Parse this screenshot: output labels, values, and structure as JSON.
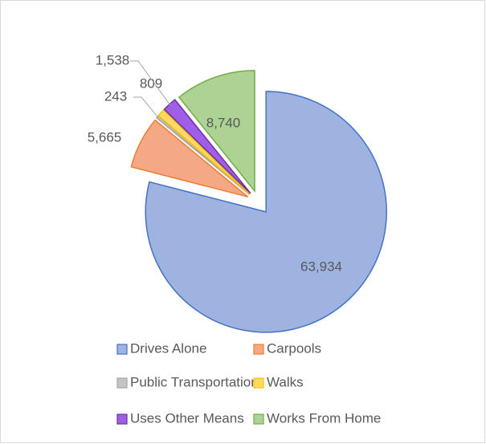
{
  "chart_data": {
    "type": "pie",
    "categories": [
      "Drives Alone",
      "Carpools",
      "Public Transportation",
      "Walks",
      "Uses Other Means",
      "Works From Home"
    ],
    "values": [
      63934,
      5665,
      243,
      809,
      1538,
      8740
    ],
    "value_labels": [
      "63,934",
      "5,665",
      "243",
      "809",
      "1,538",
      "8,740"
    ],
    "colors": [
      "#9fb3e1",
      "#f5a886",
      "#c4c4c4",
      "#ffd966",
      "#9e5ee8",
      "#acd393"
    ],
    "edge_colors": [
      "#4472c4",
      "#ed7d31",
      "#a5a5a5",
      "#ffc000",
      "#7030a0",
      "#70ad47"
    ],
    "legend": "bottom"
  }
}
